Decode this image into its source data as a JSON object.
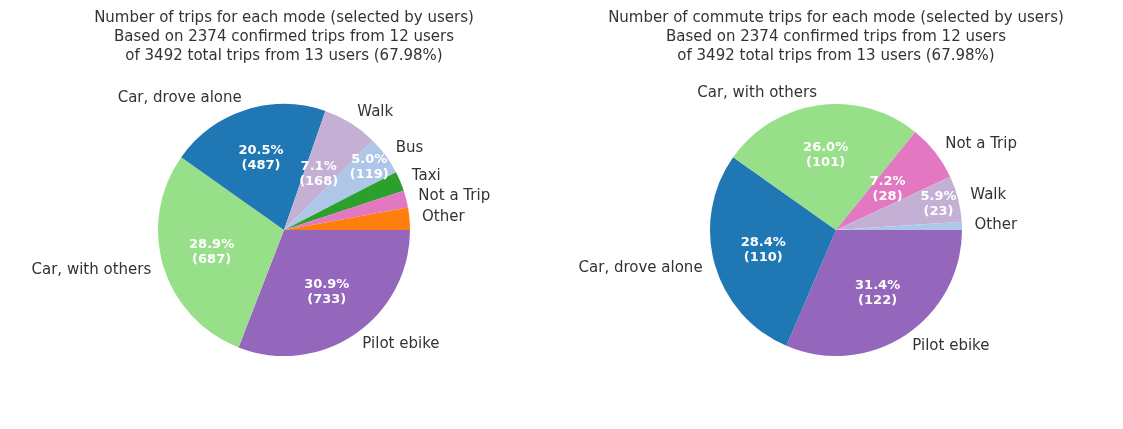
{
  "chart_data": [
    {
      "type": "pie",
      "title": "Number of trips for each mode (selected by users)\nBased on 2374 confirmed trips from 12 users\nof 3492 total trips from 13 users (67.98%)",
      "categories": [
        "Pilot ebike",
        "Car, with others",
        "Car, drove alone",
        "Walk",
        "Bus",
        "Taxi",
        "Not a Trip",
        "Other"
      ],
      "values": [
        733,
        687,
        487,
        168,
        119,
        60,
        52,
        68
      ],
      "colors": [
        "#9467bd",
        "#98df8a",
        "#1f77b4",
        "#c5b0d5",
        "#aec7e8",
        "#2ca02c",
        "#e377c2",
        "#ff7f0e"
      ],
      "value_labels": [
        "30.9%\n(733)",
        "28.9%\n(687)",
        "20.5%\n(487)",
        "7.1%\n(168)",
        "5.0%\n(119)",
        null,
        null,
        null
      ],
      "legend": false
    },
    {
      "type": "pie",
      "title": "Number of commute trips for each mode (selected by users)\nBased on 2374 confirmed trips from 12 users\nof 3492 total trips from 13 users (67.98%)",
      "categories": [
        "Pilot ebike",
        "Car, drove alone",
        "Car, with others",
        "Not a Trip",
        "Walk",
        "Other"
      ],
      "values": [
        122,
        110,
        101,
        28,
        23,
        4
      ],
      "colors": [
        "#9467bd",
        "#1f77b4",
        "#98df8a",
        "#e377c2",
        "#c5b0d5",
        "#aec7e8"
      ],
      "value_labels": [
        "31.4%\n(122)",
        "28.4%\n(110)",
        "26.0%\n(101)",
        "7.2%\n(28)",
        "5.9%\n(23)",
        null
      ],
      "legend": false
    }
  ]
}
